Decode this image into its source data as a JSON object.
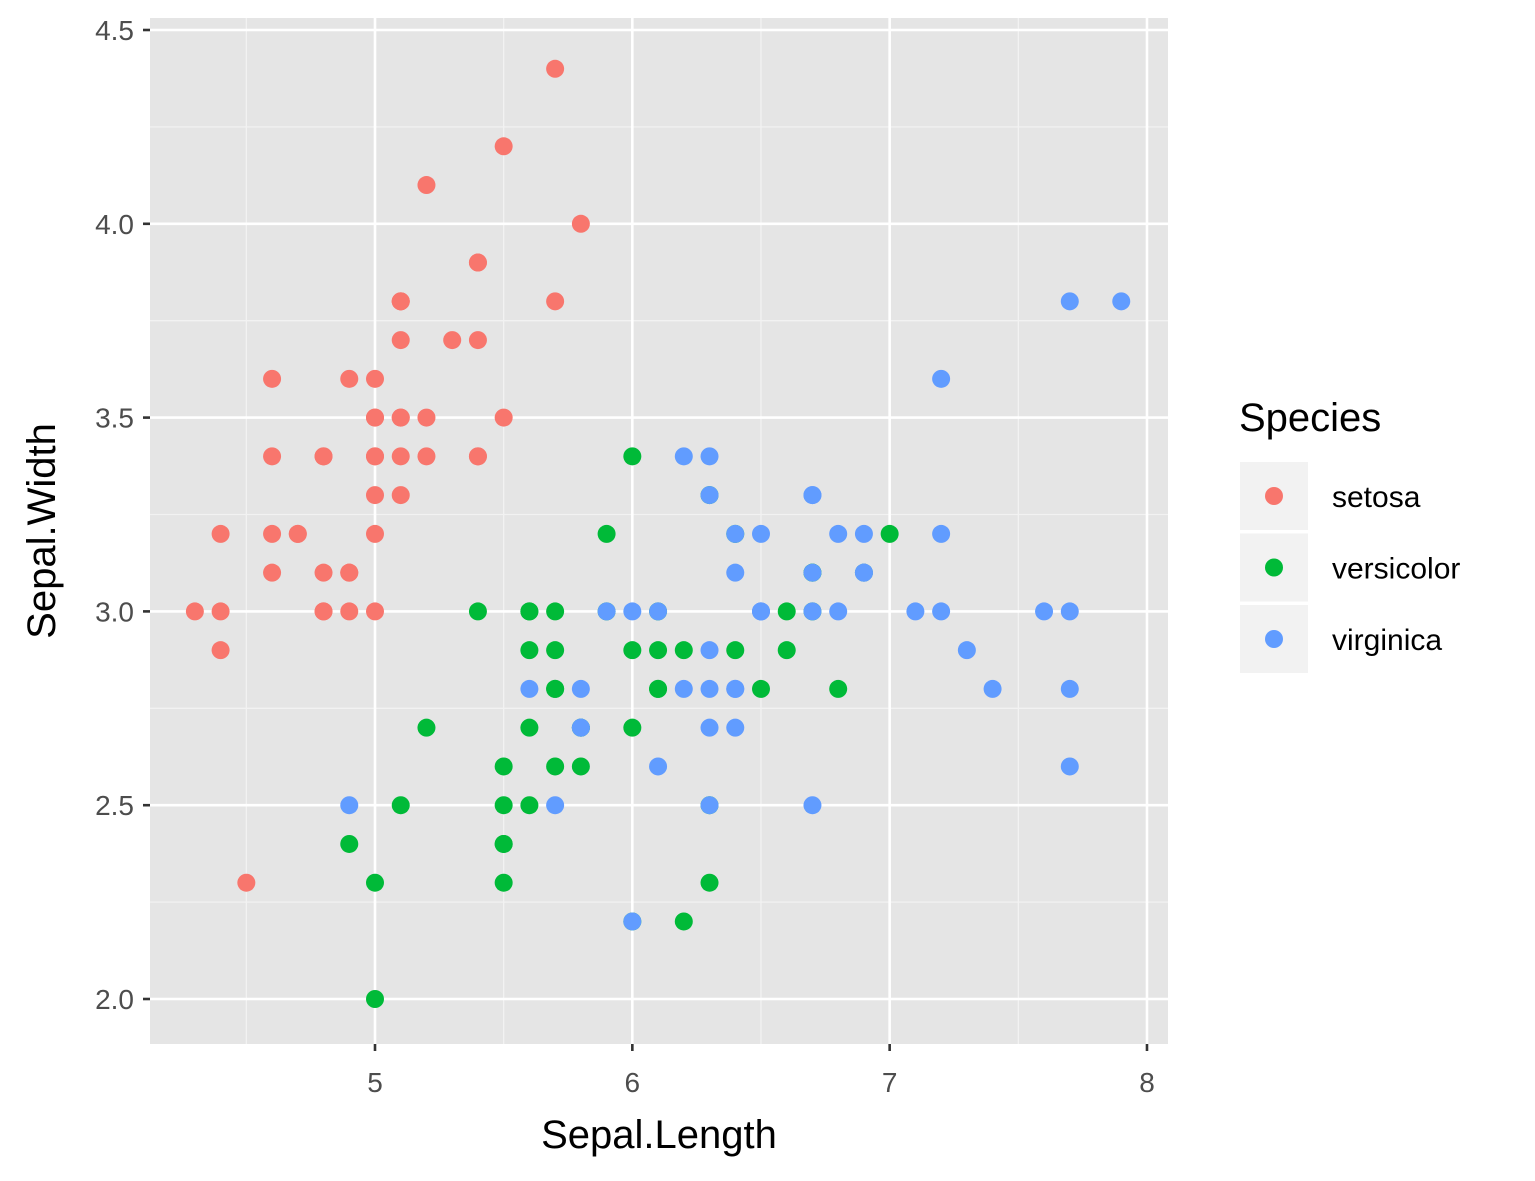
{
  "chart_data": {
    "type": "scatter",
    "title": "",
    "xlabel": "Sepal.Length",
    "ylabel": "Sepal.Width",
    "xlim": [
      4.3,
      7.9
    ],
    "ylim": [
      2.0,
      4.4
    ],
    "x_ticks": [
      "5",
      "6",
      "7",
      "8"
    ],
    "y_ticks": [
      "2.0",
      "2.5",
      "3.0",
      "3.5",
      "4.0",
      "4.5"
    ],
    "grid": true,
    "panel_background": "#e5e5e5",
    "legend": {
      "title": "Species",
      "placement": "right",
      "entries": [
        "setosa",
        "versicolor",
        "virginica"
      ]
    },
    "series": [
      {
        "name": "setosa",
        "color": "#f8766d",
        "points": [
          [
            5.1,
            3.5
          ],
          [
            4.9,
            3.0
          ],
          [
            4.7,
            3.2
          ],
          [
            4.6,
            3.1
          ],
          [
            5.0,
            3.6
          ],
          [
            5.4,
            3.9
          ],
          [
            4.6,
            3.4
          ],
          [
            5.0,
            3.4
          ],
          [
            4.4,
            2.9
          ],
          [
            4.9,
            3.1
          ],
          [
            5.4,
            3.7
          ],
          [
            4.8,
            3.4
          ],
          [
            4.8,
            3.0
          ],
          [
            4.3,
            3.0
          ],
          [
            5.8,
            4.0
          ],
          [
            5.7,
            4.4
          ],
          [
            5.4,
            3.9
          ],
          [
            5.1,
            3.5
          ],
          [
            5.7,
            3.8
          ],
          [
            5.1,
            3.8
          ],
          [
            5.4,
            3.4
          ],
          [
            5.1,
            3.7
          ],
          [
            4.6,
            3.6
          ],
          [
            5.1,
            3.3
          ],
          [
            4.8,
            3.4
          ],
          [
            5.0,
            3.0
          ],
          [
            5.0,
            3.4
          ],
          [
            5.2,
            3.5
          ],
          [
            5.2,
            3.4
          ],
          [
            4.7,
            3.2
          ],
          [
            4.8,
            3.1
          ],
          [
            5.4,
            3.4
          ],
          [
            5.2,
            4.1
          ],
          [
            5.5,
            4.2
          ],
          [
            4.9,
            3.1
          ],
          [
            5.0,
            3.2
          ],
          [
            5.5,
            3.5
          ],
          [
            4.9,
            3.6
          ],
          [
            4.4,
            3.0
          ],
          [
            5.1,
            3.4
          ],
          [
            5.0,
            3.5
          ],
          [
            4.5,
            2.3
          ],
          [
            4.4,
            3.2
          ],
          [
            5.0,
            3.5
          ],
          [
            5.1,
            3.8
          ],
          [
            4.8,
            3.0
          ],
          [
            5.1,
            3.8
          ],
          [
            4.6,
            3.2
          ],
          [
            5.3,
            3.7
          ],
          [
            5.0,
            3.3
          ]
        ]
      },
      {
        "name": "versicolor",
        "color": "#00ba38",
        "points": [
          [
            7.0,
            3.2
          ],
          [
            6.4,
            3.2
          ],
          [
            6.9,
            3.1
          ],
          [
            5.5,
            2.3
          ],
          [
            6.5,
            2.8
          ],
          [
            5.7,
            2.8
          ],
          [
            6.3,
            3.3
          ],
          [
            4.9,
            2.4
          ],
          [
            6.6,
            2.9
          ],
          [
            5.2,
            2.7
          ],
          [
            5.0,
            2.0
          ],
          [
            5.9,
            3.0
          ],
          [
            6.0,
            2.2
          ],
          [
            6.1,
            2.9
          ],
          [
            5.6,
            2.9
          ],
          [
            6.7,
            3.1
          ],
          [
            5.6,
            3.0
          ],
          [
            5.8,
            2.7
          ],
          [
            6.2,
            2.2
          ],
          [
            5.6,
            2.5
          ],
          [
            5.9,
            3.2
          ],
          [
            6.1,
            2.8
          ],
          [
            6.3,
            2.5
          ],
          [
            6.1,
            2.8
          ],
          [
            6.4,
            2.9
          ],
          [
            6.6,
            3.0
          ],
          [
            6.8,
            2.8
          ],
          [
            6.7,
            3.0
          ],
          [
            6.0,
            2.9
          ],
          [
            5.7,
            2.6
          ],
          [
            5.5,
            2.4
          ],
          [
            5.5,
            2.4
          ],
          [
            5.8,
            2.7
          ],
          [
            6.0,
            2.7
          ],
          [
            5.4,
            3.0
          ],
          [
            6.0,
            3.4
          ],
          [
            6.7,
            3.1
          ],
          [
            6.3,
            2.3
          ],
          [
            5.6,
            3.0
          ],
          [
            5.5,
            2.5
          ],
          [
            5.5,
            2.6
          ],
          [
            6.1,
            3.0
          ],
          [
            5.8,
            2.6
          ],
          [
            5.0,
            2.3
          ],
          [
            5.6,
            2.7
          ],
          [
            5.7,
            3.0
          ],
          [
            5.7,
            2.9
          ],
          [
            6.2,
            2.9
          ],
          [
            5.1,
            2.5
          ],
          [
            5.7,
            2.8
          ]
        ]
      },
      {
        "name": "virginica",
        "color": "#619cff",
        "points": [
          [
            6.3,
            3.3
          ],
          [
            5.8,
            2.7
          ],
          [
            7.1,
            3.0
          ],
          [
            6.3,
            2.9
          ],
          [
            6.5,
            3.0
          ],
          [
            7.6,
            3.0
          ],
          [
            4.9,
            2.5
          ],
          [
            7.3,
            2.9
          ],
          [
            6.7,
            2.5
          ],
          [
            7.2,
            3.6
          ],
          [
            6.5,
            3.2
          ],
          [
            6.4,
            2.7
          ],
          [
            6.8,
            3.0
          ],
          [
            5.7,
            2.5
          ],
          [
            5.8,
            2.8
          ],
          [
            6.4,
            3.2
          ],
          [
            6.5,
            3.0
          ],
          [
            7.7,
            3.8
          ],
          [
            7.7,
            2.6
          ],
          [
            6.0,
            2.2
          ],
          [
            6.9,
            3.2
          ],
          [
            5.6,
            2.8
          ],
          [
            7.7,
            2.8
          ],
          [
            6.3,
            2.7
          ],
          [
            6.7,
            3.3
          ],
          [
            7.2,
            3.2
          ],
          [
            6.2,
            2.8
          ],
          [
            6.1,
            3.0
          ],
          [
            6.4,
            2.8
          ],
          [
            7.2,
            3.0
          ],
          [
            7.4,
            2.8
          ],
          [
            7.9,
            3.8
          ],
          [
            6.4,
            2.8
          ],
          [
            6.3,
            2.8
          ],
          [
            6.1,
            2.6
          ],
          [
            7.7,
            3.0
          ],
          [
            6.3,
            3.4
          ],
          [
            6.4,
            3.1
          ],
          [
            6.0,
            3.0
          ],
          [
            6.9,
            3.1
          ],
          [
            6.7,
            3.1
          ],
          [
            6.9,
            3.1
          ],
          [
            5.8,
            2.7
          ],
          [
            6.8,
            3.2
          ],
          [
            6.7,
            3.3
          ],
          [
            6.7,
            3.0
          ],
          [
            6.3,
            2.5
          ],
          [
            6.5,
            3.0
          ],
          [
            6.2,
            3.4
          ],
          [
            5.9,
            3.0
          ]
        ]
      }
    ]
  }
}
